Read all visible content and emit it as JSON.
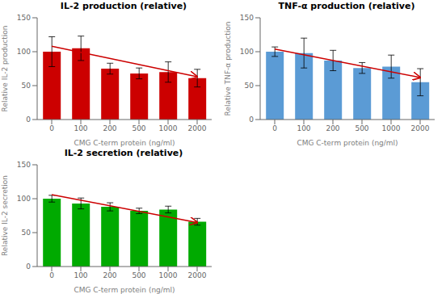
{
  "chart_data": [
    {
      "type": "bar",
      "title": "IL-2 production (relative)",
      "x_label": "CMG C-term protein (ng/ml)",
      "y_label": "Relative IL-2 production",
      "categories": [
        "0",
        "100",
        "200",
        "500",
        "1000",
        "2000"
      ],
      "values": [
        100,
        105,
        75,
        68,
        70,
        61
      ],
      "errors": [
        22,
        18,
        8,
        8,
        15,
        13
      ],
      "color": "#cc0000",
      "trend_start": 108,
      "trend_end": 63,
      "trend_color": "#cc0000",
      "ylim": [
        0,
        150
      ],
      "yticks": [
        0,
        50,
        100,
        150
      ],
      "grid": false
    },
    {
      "type": "bar",
      "title": "TNF-α production (relative)",
      "x_label": "CMG C-term protein (ng/ml)",
      "y_label": "Relative TNF-α production",
      "categories": [
        "0",
        "100",
        "200",
        "500",
        "1000",
        "2000"
      ],
      "values": [
        100,
        98,
        87,
        76,
        78,
        55
      ],
      "errors": [
        7,
        22,
        15,
        8,
        17,
        20
      ],
      "color": "#5b9bd5",
      "trend_start": 104,
      "trend_end": 62,
      "trend_color": "#cc0000",
      "ylim": [
        0,
        150
      ],
      "yticks": [
        0,
        50,
        100,
        150
      ],
      "grid": false
    },
    {
      "type": "bar",
      "title": "IL-2 secretion (relative)",
      "x_label": "CMG C-term protein (ng/ml)",
      "y_label": "Relative IL-2 secretion",
      "categories": [
        "0",
        "100",
        "200",
        "500",
        "1000",
        "2000"
      ],
      "values": [
        100,
        93,
        88,
        82,
        84,
        66
      ],
      "errors": [
        5,
        8,
        6,
        4,
        5,
        5
      ],
      "color": "#00aa00",
      "trend_start": 106,
      "trend_end": 65,
      "trend_color": "#cc0000",
      "ylim": [
        0,
        150
      ],
      "yticks": [
        0,
        50,
        100,
        150
      ],
      "grid": false
    }
  ]
}
